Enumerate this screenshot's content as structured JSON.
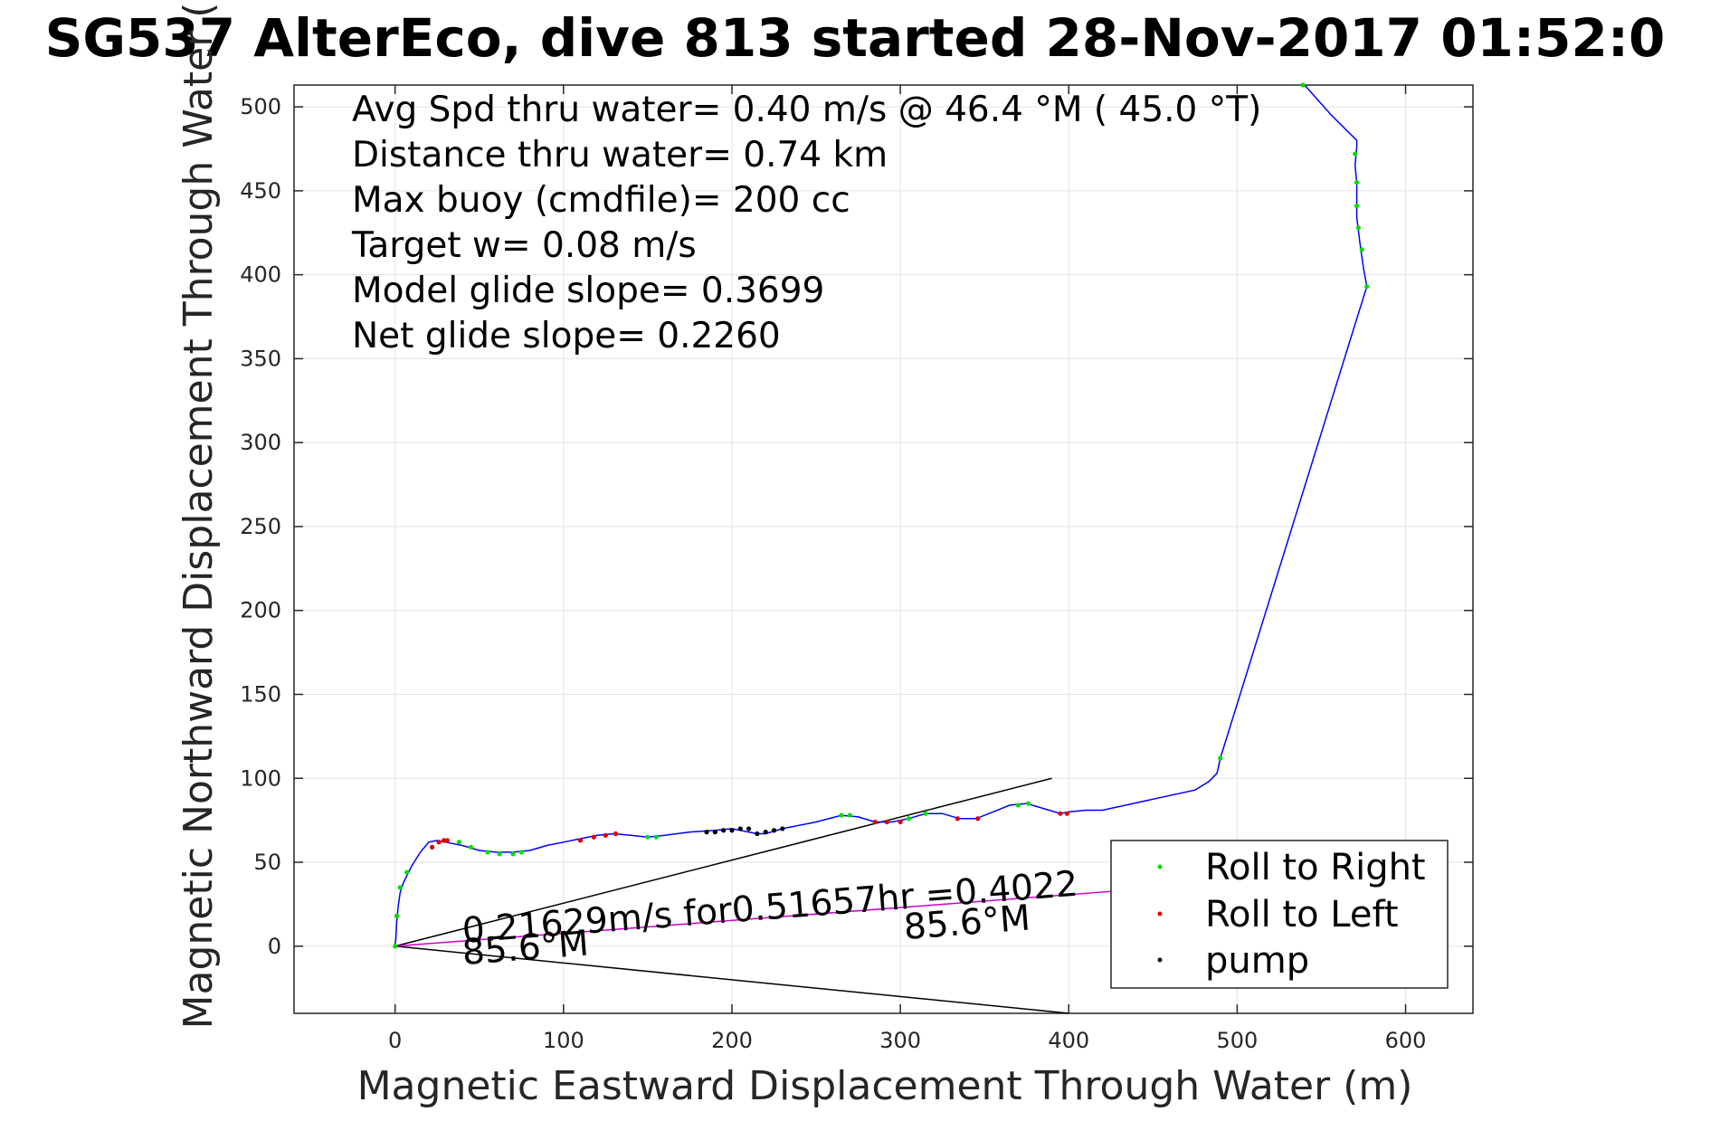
{
  "chart_data": {
    "type": "line",
    "title": "SG537 AlterEco, dive 813 started 28-Nov-2017 01:52:0",
    "xlabel": "Magnetic Eastward Displacement Through Water (m)",
    "ylabel": "Magnetic Northward Displacement Through Water (",
    "xlim": [
      -60,
      640
    ],
    "ylim": [
      -40,
      513
    ],
    "xticks": [
      0,
      100,
      200,
      300,
      400,
      500,
      600
    ],
    "yticks": [
      0,
      50,
      100,
      150,
      200,
      250,
      300,
      350,
      400,
      450,
      500
    ],
    "grid": true,
    "legend_position": "bottom-right",
    "annotations": [
      "Avg Spd thru water=  0.40 m/s @  46.4 °M ( 45.0 °T)",
      "Distance thru water=  0.74 km",
      "Max buoy (cmdfile)= 200 cc",
      "Target w= 0.08 m/s",
      "Model glide slope= 0.3699",
      "Net glide slope= 0.2260"
    ],
    "current_label": "0.21629m/s for0.51657hr =0.4022",
    "heading_label_left": "85.6°M",
    "heading_label_right": "85.6°M",
    "colors": {
      "track": "#0000ff",
      "roll_right": "#00dd00",
      "roll_left": "#dd0000",
      "pump": "#000000",
      "current": "#cc00cc",
      "cone": "#000000"
    },
    "series": [
      {
        "name": "track",
        "x": [
          0,
          0.5,
          1,
          2,
          3,
          5,
          7,
          10,
          15,
          20,
          25,
          30,
          40,
          50,
          60,
          70,
          80,
          90,
          100,
          110,
          120,
          130,
          140,
          150,
          160,
          175,
          190,
          200,
          205,
          210,
          215,
          220,
          230,
          250,
          265,
          275,
          285,
          295,
          305,
          315,
          325,
          335,
          345,
          355,
          365,
          375,
          385,
          395,
          400,
          410,
          420,
          475,
          483,
          488,
          490,
          577,
          575,
          573,
          571,
          571,
          570,
          571,
          571,
          556,
          540
        ],
        "y": [
          0,
          5,
          15,
          25,
          32,
          38,
          42,
          48,
          56,
          62,
          63,
          62,
          60,
          57,
          56,
          56,
          57,
          60,
          62,
          64,
          66,
          67,
          66,
          65,
          66,
          68,
          69,
          70,
          69,
          68,
          67,
          67,
          70,
          74,
          78,
          77,
          74,
          74,
          76,
          79,
          79,
          76,
          76,
          80,
          84,
          85,
          82,
          79,
          80,
          81,
          81,
          93,
          98,
          103,
          112,
          393,
          404,
          418,
          434,
          455,
          465,
          476,
          480,
          495,
          513
        ]
      },
      {
        "name": "Roll to Right",
        "x": [
          0,
          1,
          3,
          7,
          38,
          45,
          55,
          62,
          70,
          75,
          150,
          155,
          265,
          270,
          305,
          315,
          370,
          376,
          490,
          577,
          574,
          572,
          571,
          571,
          570,
          539
        ],
        "y": [
          0,
          18,
          35,
          44,
          62,
          59,
          56,
          55,
          55,
          56,
          65,
          65,
          78,
          78,
          76,
          79,
          84,
          85,
          112,
          393,
          415,
          428,
          441,
          455,
          472,
          513
        ]
      },
      {
        "name": "Roll to Left",
        "x": [
          22,
          26,
          29,
          31,
          110,
          118,
          125,
          131,
          285,
          292,
          300,
          334,
          346,
          395,
          399
        ],
        "y": [
          59,
          62,
          63,
          63,
          63,
          65,
          66,
          67,
          74,
          74,
          74,
          76,
          76,
          79,
          79
        ]
      },
      {
        "name": "pump",
        "x": [
          185,
          190,
          195,
          200,
          205,
          210,
          215,
          220,
          225,
          230
        ],
        "y": [
          68,
          68,
          69,
          69,
          70,
          70,
          67,
          68,
          69,
          70
        ]
      }
    ],
    "current_vector": {
      "x": [
        0,
        430
      ],
      "y": [
        0,
        33
      ]
    },
    "heading_cone": {
      "x": [
        0,
        390,
        0,
        400
      ],
      "y": [
        0,
        100,
        0,
        -40
      ]
    }
  }
}
